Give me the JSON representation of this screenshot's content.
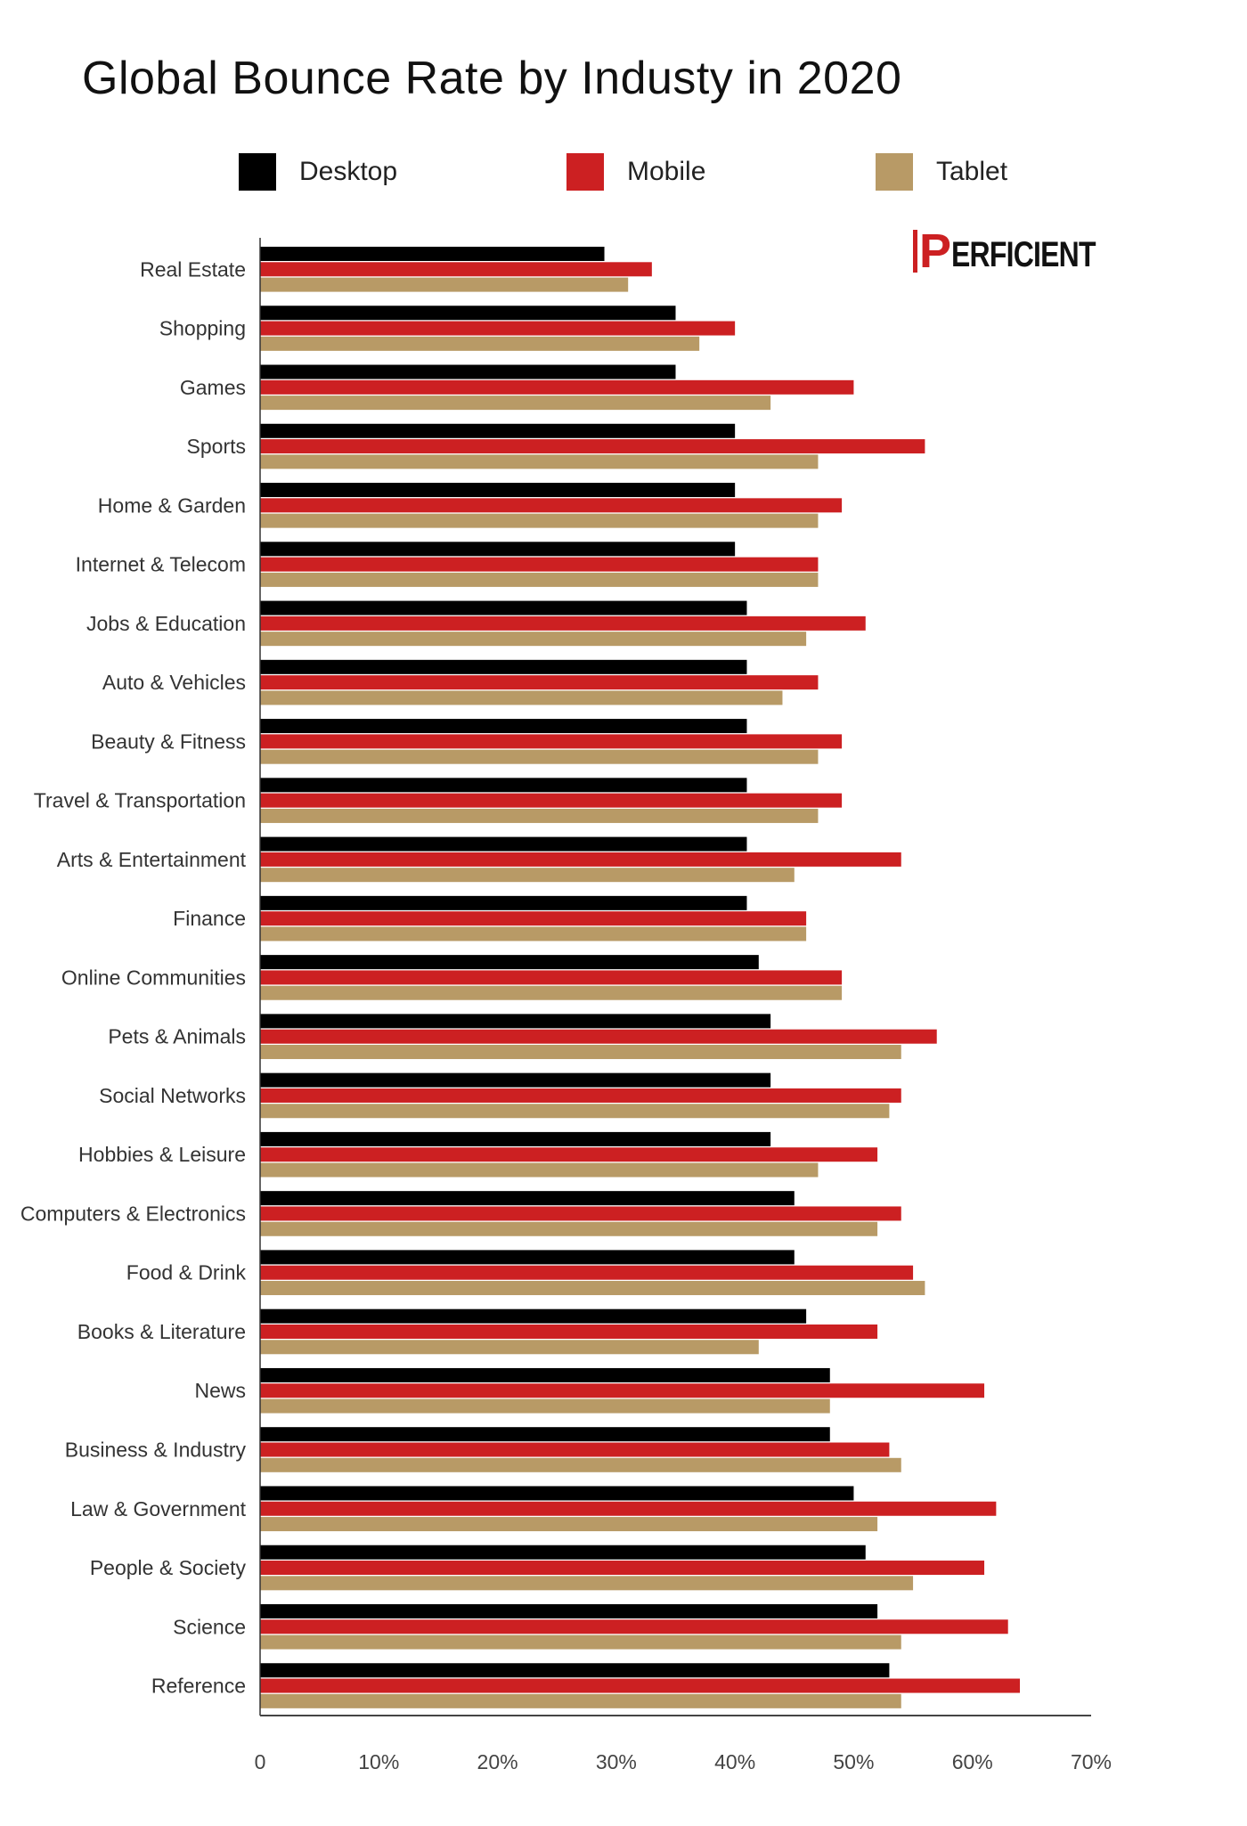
{
  "chart_data": {
    "type": "bar",
    "orientation": "horizontal",
    "title": "Global Bounce Rate by Industy in 2020",
    "xlabel": "",
    "ylabel": "",
    "xlim": [
      0,
      70
    ],
    "x_ticks": [
      "0",
      "10%",
      "20%",
      "30%",
      "40%",
      "50%",
      "60%",
      "70%"
    ],
    "grid": false,
    "legend_position": "top",
    "categories": [
      "Real Estate",
      "Shopping",
      "Games",
      "Sports",
      "Home & Garden",
      "Internet & Telecom",
      "Jobs & Education",
      "Auto & Vehicles",
      "Beauty & Fitness",
      "Travel & Transportation",
      "Arts & Entertainment",
      "Finance",
      "Online Communities",
      "Pets & Animals",
      "Social Networks",
      "Hobbies & Leisure",
      "Computers & Electronics",
      "Food & Drink",
      "Books & Literature",
      "News",
      "Business & Industry",
      "Law & Government",
      "People & Society",
      "Science",
      "Reference"
    ],
    "series": [
      {
        "name": "Desktop",
        "color": "#000000",
        "values": [
          29,
          35,
          35,
          40,
          40,
          40,
          41,
          41,
          41,
          41,
          41,
          41,
          42,
          43,
          43,
          43,
          45,
          45,
          46,
          48,
          48,
          50,
          51,
          52,
          53
        ]
      },
      {
        "name": "Mobile",
        "color": "#cc2022",
        "values": [
          33,
          40,
          50,
          56,
          49,
          47,
          51,
          47,
          49,
          49,
          54,
          46,
          49,
          57,
          54,
          52,
          54,
          55,
          52,
          61,
          53,
          62,
          61,
          63,
          64
        ]
      },
      {
        "name": "Tablet",
        "color": "#b89a66",
        "values": [
          31,
          37,
          43,
          47,
          47,
          47,
          46,
          44,
          47,
          47,
          45,
          46,
          49,
          54,
          53,
          47,
          52,
          56,
          42,
          48,
          54,
          52,
          55,
          54,
          54
        ]
      }
    ]
  },
  "logo": {
    "text": "PERFICIENT",
    "first": "P",
    "rest": "ERFICIENT"
  }
}
